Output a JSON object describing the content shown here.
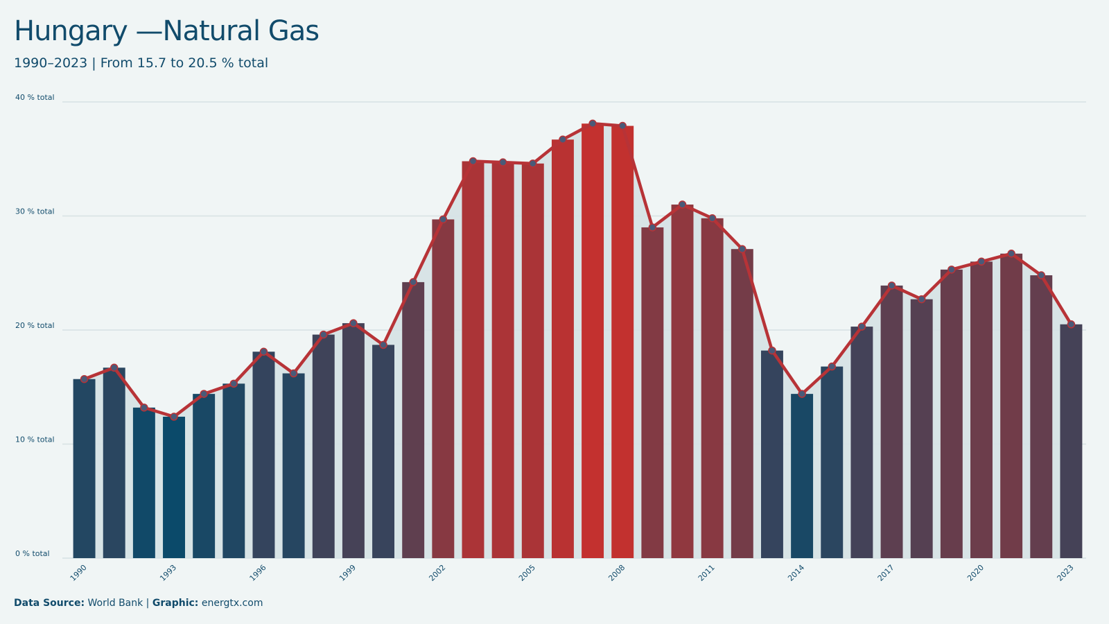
{
  "header": {
    "title": "Hungary —Natural Gas",
    "subtitle": "1990–2023 | From 15.7 to 20.5 % total"
  },
  "footer": {
    "source_label": "Data Source:",
    "source_value": " World Bank | ",
    "graphic_label": "Graphic:",
    "graphic_value": " energtx.com"
  },
  "colors": {
    "low": "#0b4a6a",
    "high": "#c3312f",
    "line": "#b73337",
    "marker": "#4a5a78",
    "grid": "#d6e1e3",
    "area": "#d5e2e4"
  },
  "chart_data": {
    "type": "bar",
    "x": [
      1990,
      1991,
      1992,
      1993,
      1994,
      1995,
      1996,
      1997,
      1998,
      1999,
      2000,
      2001,
      2002,
      2003,
      2004,
      2005,
      2006,
      2007,
      2008,
      2009,
      2010,
      2011,
      2012,
      2013,
      2014,
      2015,
      2016,
      2017,
      2018,
      2019,
      2020,
      2021,
      2022,
      2023
    ],
    "x_tick_labels": [
      "1990",
      "1993",
      "1996",
      "1999",
      "2002",
      "2005",
      "2008",
      "2011",
      "2014",
      "2017",
      "2020",
      "2023"
    ],
    "values": [
      15.7,
      16.7,
      13.2,
      12.4,
      14.4,
      15.3,
      18.1,
      16.2,
      19.6,
      20.6,
      18.7,
      24.2,
      29.7,
      34.8,
      34.7,
      34.6,
      36.7,
      38.1,
      37.9,
      29.0,
      31.0,
      29.8,
      27.1,
      18.2,
      14.4,
      16.8,
      20.3,
      23.9,
      22.7,
      25.3,
      26.0,
      26.7,
      24.8,
      20.5
    ],
    "y_tick_labels": [
      "0 % total",
      "10 % total",
      "20 % total",
      "30 % total",
      "40 % total"
    ],
    "y_ticks": [
      0,
      10,
      20,
      30,
      40
    ],
    "ylim": [
      0,
      40
    ],
    "unit": "% total",
    "grid": true,
    "overlay": "line with markers"
  }
}
